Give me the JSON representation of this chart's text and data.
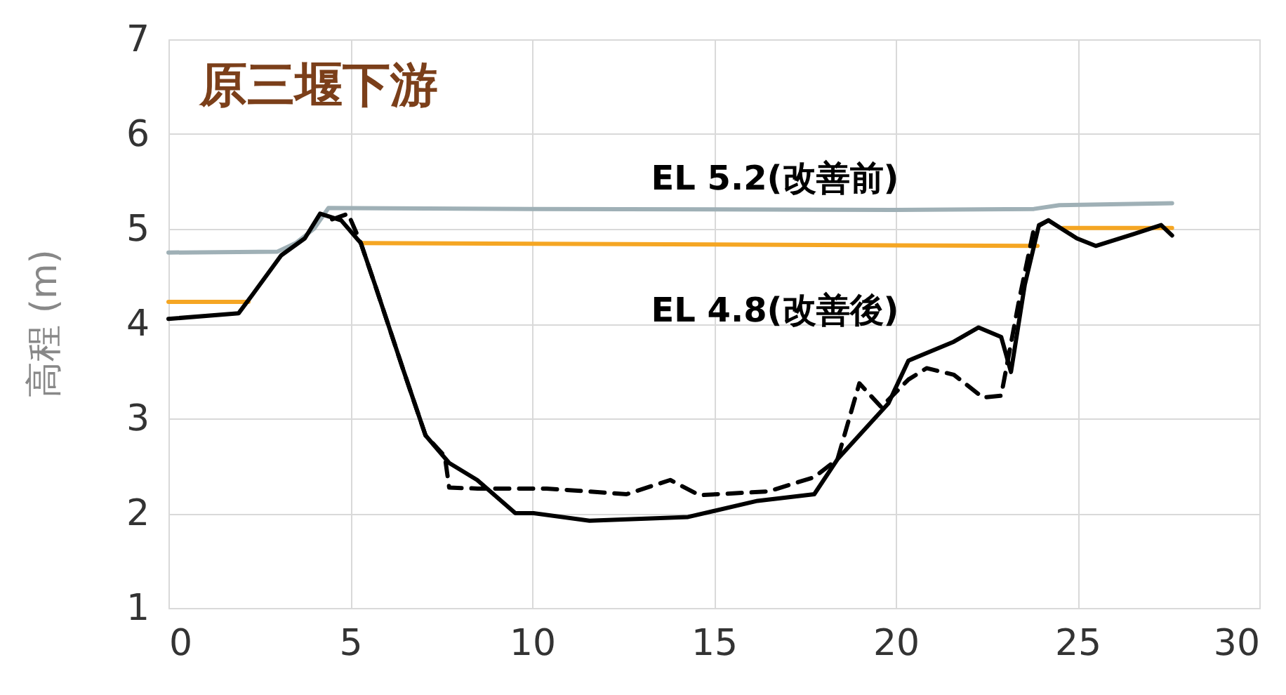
{
  "chart_data": {
    "type": "line",
    "title": "原三堰下游",
    "ylabel": "高程 (m)",
    "xlim": [
      0,
      30
    ],
    "xticks": [
      0,
      5,
      10,
      15,
      20,
      25,
      30
    ],
    "ylim": [
      1,
      7
    ],
    "yticks": [
      1,
      2,
      3,
      4,
      5,
      6,
      7
    ],
    "grid": true,
    "series": [
      {
        "color": "#9fb0b6",
        "line_style": "solid",
        "x": [
          0,
          3.0,
          3.5,
          4.0,
          4.4,
          10,
          20,
          23.8,
          24.5,
          27.6
        ],
        "values": [
          4.75,
          4.76,
          4.85,
          5.0,
          5.22,
          5.21,
          5.2,
          5.21,
          5.25,
          5.27
        ]
      },
      {
        "color": "#f5a623",
        "line_style": "solid",
        "x": [
          0,
          2.2,
          3.0,
          5.3,
          23.9,
          24.2,
          24.6,
          27.6
        ],
        "values": [
          4.23,
          4.23,
          null,
          4.85,
          4.82,
          null,
          5.01,
          5.01
        ]
      },
      {
        "color": "#000000",
        "line_style": "dashed",
        "x": [
          4.5,
          4.94,
          5.29,
          5.68,
          6.45,
          7.07,
          7.6,
          7.72,
          8.5,
          10.4,
          12.6,
          13.8,
          14.6,
          16.5,
          17.76,
          18.4,
          19.0,
          19.6,
          20.35,
          20.85,
          21.6,
          22.4,
          22.9,
          23.4,
          23.8,
          24.2
        ],
        "values": [
          5.1,
          5.16,
          4.85,
          4.41,
          3.52,
          2.82,
          2.6,
          2.27,
          2.26,
          2.26,
          2.2,
          2.35,
          2.19,
          2.23,
          2.38,
          2.57,
          3.37,
          3.12,
          3.41,
          3.53,
          3.46,
          3.22,
          3.24,
          4.26,
          5.0,
          5.09
        ]
      },
      {
        "color": "#000000",
        "line_style": "solid",
        "x": [
          0,
          1.93,
          2.3,
          3.1,
          3.75,
          4.17,
          4.75,
          5.29,
          5.68,
          6.45,
          7.07,
          7.72,
          8.49,
          9.54,
          10.04,
          11.58,
          14.29,
          16.2,
          17.76,
          18.4,
          19.8,
          20.35,
          21.6,
          22.28,
          22.9,
          23.17,
          23.55,
          23.94,
          24.2,
          24.98,
          25.5,
          26.5,
          27.3,
          27.6
        ],
        "values": [
          4.05,
          4.11,
          4.3,
          4.72,
          4.9,
          5.16,
          5.09,
          4.85,
          4.41,
          3.52,
          2.82,
          2.53,
          2.35,
          2.0,
          2.0,
          1.92,
          1.96,
          2.13,
          2.2,
          2.57,
          3.16,
          3.61,
          3.81,
          3.96,
          3.86,
          3.49,
          4.41,
          5.04,
          5.09,
          4.9,
          4.82,
          4.94,
          5.04,
          4.93
        ]
      }
    ],
    "annotations": [
      "EL 5.2(改善前)",
      "EL 4.8(改善後)"
    ]
  }
}
